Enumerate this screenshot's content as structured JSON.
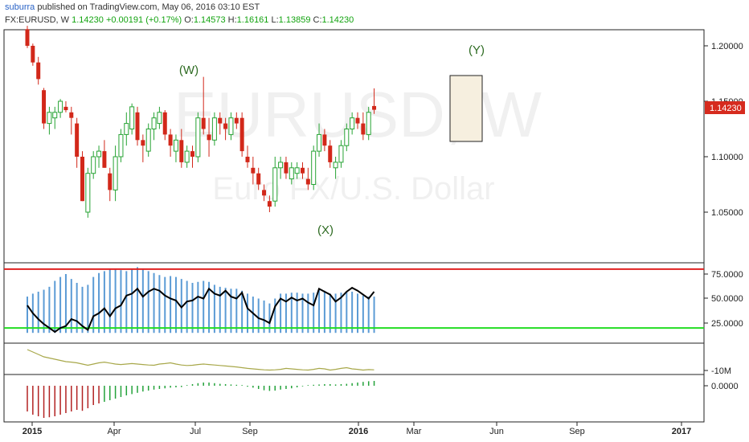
{
  "header": {
    "author": "suburra",
    "published_text": " published on TradingView.com, May 06, 2016 03:10 EST",
    "symbol": "FX:EURUSD, W",
    "last": "1.14230",
    "change": "+0.00191 (+0.17%)",
    "open_label": "O:",
    "open": "1.14573",
    "high_label": "H:",
    "high": "1.16161",
    "low_label": "L:",
    "low": "1.13859",
    "close_label": "C:",
    "close": "1.14230"
  },
  "watermark": {
    "symbol": "EURUSD, W",
    "description": "Euro FX/U.S. Dollar"
  },
  "wave_labels": {
    "w": "(W)",
    "x": "(X)",
    "y": "(Y)"
  },
  "price_axis": {
    "ticks": [
      "1.20000",
      "1.15000",
      "1.10000",
      "1.05000"
    ],
    "current": "1.14230"
  },
  "osc_axis": {
    "ticks": [
      "75.0000",
      "50.0000",
      "25.0000"
    ]
  },
  "vol_axis": {
    "ticks": [
      "-10M"
    ]
  },
  "hist_axis": {
    "ticks": [
      "0.0000"
    ]
  },
  "time_axis": {
    "labels": [
      "2015",
      "Apr",
      "Jul",
      "Sep",
      "2016",
      "Mar",
      "Jun",
      "Sep",
      "2017"
    ]
  },
  "colors": {
    "up": "#26a333",
    "down": "#d2281a",
    "osc_bar": "#5b9bd5",
    "osc_line": "#000000",
    "upper_band": "#e02020",
    "lower_band": "#22dd22",
    "volume_line": "#a8a84a",
    "hist_up": "#23a23a",
    "hist_down": "#b22222",
    "box": "#f6efdf",
    "wave_label": "#2e6b22"
  },
  "chart_data": {
    "type": "candlestick",
    "ohlc": [
      [
        1.215,
        1.218,
        1.198,
        1.2
      ],
      [
        1.2,
        1.202,
        1.182,
        1.185
      ],
      [
        1.185,
        1.19,
        1.165,
        1.17
      ],
      [
        1.16,
        1.162,
        1.125,
        1.13
      ],
      [
        1.13,
        1.145,
        1.12,
        1.14
      ],
      [
        1.135,
        1.145,
        1.125,
        1.14
      ],
      [
        1.14,
        1.152,
        1.135,
        1.15
      ],
      [
        1.145,
        1.15,
        1.14,
        1.142
      ],
      [
        1.14,
        1.145,
        1.12,
        1.135
      ],
      [
        1.13,
        1.135,
        1.09,
        1.1
      ],
      [
        1.1,
        1.105,
        1.06,
        1.06
      ],
      [
        1.05,
        1.09,
        1.045,
        1.085
      ],
      [
        1.085,
        1.105,
        1.08,
        1.1
      ],
      [
        1.1,
        1.11,
        1.09,
        1.105
      ],
      [
        1.105,
        1.115,
        1.09,
        1.09
      ],
      [
        1.085,
        1.09,
        1.06,
        1.07
      ],
      [
        1.07,
        1.11,
        1.06,
        1.1
      ],
      [
        1.1,
        1.125,
        1.095,
        1.12
      ],
      [
        1.12,
        1.14,
        1.11,
        1.13
      ],
      [
        1.125,
        1.148,
        1.12,
        1.145
      ],
      [
        1.14,
        1.145,
        1.11,
        1.115
      ],
      [
        1.115,
        1.12,
        1.095,
        1.11
      ],
      [
        1.105,
        1.13,
        1.1,
        1.125
      ],
      [
        1.125,
        1.14,
        1.115,
        1.135
      ],
      [
        1.13,
        1.145,
        1.125,
        1.14
      ],
      [
        1.14,
        1.142,
        1.115,
        1.12
      ],
      [
        1.12,
        1.125,
        1.1,
        1.11
      ],
      [
        1.105,
        1.12,
        1.095,
        1.115
      ],
      [
        1.115,
        1.125,
        1.09,
        1.095
      ],
      [
        1.095,
        1.11,
        1.09,
        1.105
      ],
      [
        1.105,
        1.11,
        1.09,
        1.1
      ],
      [
        1.1,
        1.14,
        1.095,
        1.135
      ],
      [
        1.135,
        1.172,
        1.12,
        1.125
      ],
      [
        1.12,
        1.135,
        1.1,
        1.115
      ],
      [
        1.115,
        1.14,
        1.11,
        1.135
      ],
      [
        1.135,
        1.14,
        1.12,
        1.13
      ],
      [
        1.13,
        1.135,
        1.115,
        1.125
      ],
      [
        1.12,
        1.14,
        1.115,
        1.135
      ],
      [
        1.135,
        1.14,
        1.125,
        1.13
      ],
      [
        1.135,
        1.14,
        1.1,
        1.105
      ],
      [
        1.1,
        1.11,
        1.09,
        1.095
      ],
      [
        1.09,
        1.1,
        1.075,
        1.085
      ],
      [
        1.085,
        1.09,
        1.07,
        1.075
      ],
      [
        1.07,
        1.075,
        1.06,
        1.065
      ],
      [
        1.06,
        1.065,
        1.05,
        1.055
      ],
      [
        1.06,
        1.1,
        1.055,
        1.09
      ],
      [
        1.09,
        1.1,
        1.08,
        1.095
      ],
      [
        1.095,
        1.1,
        1.08,
        1.085
      ],
      [
        1.08,
        1.095,
        1.075,
        1.09
      ],
      [
        1.085,
        1.095,
        1.08,
        1.09
      ],
      [
        1.09,
        1.095,
        1.08,
        1.085
      ],
      [
        1.08,
        1.09,
        1.07,
        1.075
      ],
      [
        1.075,
        1.11,
        1.07,
        1.105
      ],
      [
        1.105,
        1.13,
        1.1,
        1.12
      ],
      [
        1.12,
        1.125,
        1.105,
        1.11
      ],
      [
        1.11,
        1.115,
        1.09,
        1.095
      ],
      [
        1.09,
        1.1,
        1.08,
        1.095
      ],
      [
        1.095,
        1.115,
        1.09,
        1.11
      ],
      [
        1.11,
        1.13,
        1.105,
        1.125
      ],
      [
        1.125,
        1.14,
        1.12,
        1.135
      ],
      [
        1.135,
        1.14,
        1.125,
        1.13
      ],
      [
        1.13,
        1.14,
        1.115,
        1.12
      ],
      [
        1.12,
        1.145,
        1.115,
        1.14
      ],
      [
        1.14573,
        1.16161,
        1.13859,
        1.1423
      ]
    ],
    "oscillator": [
      43,
      35,
      29,
      24,
      20,
      16,
      20,
      22,
      29,
      27,
      22,
      18,
      32,
      35,
      40,
      32,
      40,
      43,
      53,
      55,
      60,
      52,
      57,
      60,
      58,
      53,
      50,
      48,
      41,
      47,
      48,
      52,
      50,
      60,
      55,
      53,
      58,
      52,
      50,
      56,
      40,
      35,
      30,
      28,
      25,
      42,
      50,
      47,
      51,
      48,
      50,
      46,
      43,
      60,
      57,
      54,
      47,
      51,
      57,
      61,
      58,
      54,
      50,
      57
    ],
    "oscillator_bars": [
      52,
      55,
      57,
      59,
      62,
      68,
      72,
      75,
      70,
      66,
      62,
      64,
      72,
      76,
      78,
      80,
      80,
      79,
      78,
      80,
      82,
      80,
      78,
      76,
      74,
      72,
      73,
      72,
      70,
      68,
      66,
      67,
      68,
      67,
      64,
      62,
      61,
      60,
      60,
      58,
      55,
      52,
      50,
      48,
      45,
      50,
      55,
      55,
      56,
      56,
      55,
      55,
      56,
      60,
      58,
      55,
      55,
      56,
      57,
      57,
      55,
      53,
      52,
      52
    ],
    "oscillator_bands": [
      80,
      20
    ],
    "volume": [
      0.9,
      0.8,
      0.7,
      0.6,
      0.55,
      0.5,
      0.45,
      0.4,
      0.38,
      0.35,
      0.3,
      0.25,
      0.3,
      0.35,
      0.38,
      0.34,
      0.3,
      0.28,
      0.3,
      0.32,
      0.3,
      0.28,
      0.26,
      0.25,
      0.3,
      0.32,
      0.35,
      0.3,
      0.26,
      0.24,
      0.25,
      0.28,
      0.3,
      0.28,
      0.26,
      0.24,
      0.22,
      0.2,
      0.18,
      0.15,
      0.12,
      0.1,
      0.08,
      0.06,
      0.05,
      0.06,
      0.08,
      0.12,
      0.1,
      0.08,
      0.06,
      0.05,
      0.08,
      0.12,
      0.1,
      0.05,
      0.08,
      0.12,
      0.15,
      0.1,
      0.08,
      0.05,
      0.07,
      0.06
    ],
    "histogram": [
      -0.8,
      -0.9,
      -0.95,
      -1.0,
      -0.98,
      -0.95,
      -0.9,
      -0.85,
      -0.8,
      -0.75,
      -0.78,
      -0.7,
      -0.6,
      -0.55,
      -0.5,
      -0.45,
      -0.4,
      -0.35,
      -0.3,
      -0.26,
      -0.22,
      -0.18,
      -0.15,
      -0.12,
      -0.1,
      -0.08,
      -0.06,
      -0.05,
      -0.04,
      0.02,
      0.05,
      0.08,
      0.1,
      0.1,
      0.08,
      0.06,
      0.05,
      0.04,
      0.03,
      0.02,
      -0.03,
      -0.06,
      -0.1,
      -0.14,
      -0.16,
      -0.15,
      -0.12,
      -0.1,
      -0.08,
      -0.05,
      -0.02,
      0.02,
      0.03,
      0.04,
      0.05,
      0.05,
      0.04,
      0.05,
      0.06,
      0.08,
      0.1,
      0.12,
      0.14,
      0.15
    ],
    "price_ticks": [
      1.2,
      1.15,
      1.1,
      1.05
    ],
    "osc_ticks": [
      75,
      50,
      25
    ]
  }
}
